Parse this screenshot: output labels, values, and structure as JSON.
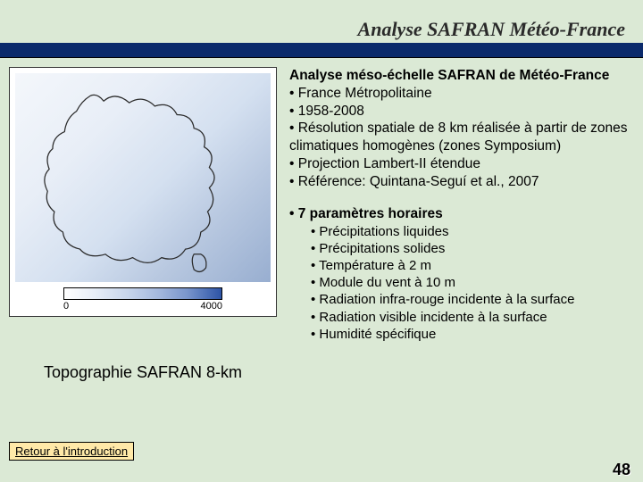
{
  "header": {
    "title": "Analyse SAFRAN Météo-France"
  },
  "map": {
    "caption": "Topographie SAFRAN 8-km",
    "colorbar_min": "0",
    "colorbar_max": "4000",
    "colors": {
      "low": "#ffffff",
      "high": "#2e54a6",
      "outline": "#2a2a2a"
    }
  },
  "description": {
    "section_title": "Analyse méso-échelle SAFRAN de Météo-France",
    "bullets": [
      "France Métropolitaine",
      "1958-2008",
      "Résolution spatiale de 8 km réalisée à partir de zones climatiques homogènes (zones Symposium)",
      "Projection Lambert-II étendue",
      "Référence: Quintana-Seguí et al., 2007"
    ],
    "params_title": "7 paramètres horaires",
    "params": [
      "Précipitations liquides",
      "Précipitations solides",
      "Température à 2 m",
      "Module du vent à 10 m",
      "Radiation infra-rouge incidente à la surface",
      "Radiation visible incidente à la surface",
      "Humidité spécifique"
    ]
  },
  "link": {
    "label": "Retour à l'introduction"
  },
  "page_number": "48"
}
